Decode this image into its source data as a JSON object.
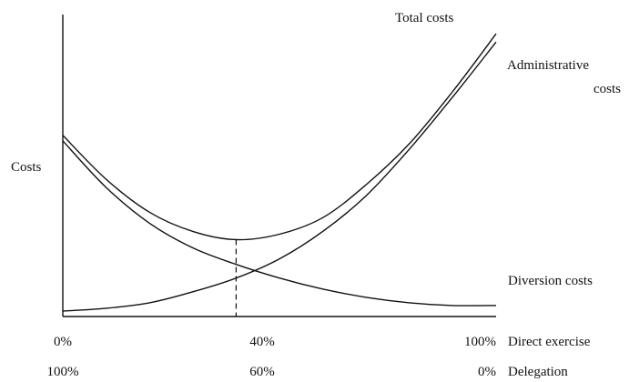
{
  "chart_data": {
    "type": "line",
    "ylabel": "Costs",
    "x_scales": [
      {
        "name": "Direct exercise",
        "ticks": [
          "0%",
          "40%",
          "100%"
        ]
      },
      {
        "name": "Delegation",
        "ticks": [
          "100%",
          "60%",
          "0%"
        ]
      }
    ],
    "x": [
      0,
      10,
      20,
      30,
      40,
      50,
      60,
      70,
      80,
      90,
      100
    ],
    "series": [
      {
        "name": "Total costs",
        "values": [
          66,
          50,
          38,
          31,
          28,
          30,
          36,
          48,
          63,
          82,
          103
        ]
      },
      {
        "name": "Administrative costs",
        "values": [
          2,
          3,
          5,
          9,
          14,
          21,
          31,
          44,
          61,
          80,
          100
        ]
      },
      {
        "name": "Diversion costs",
        "values": [
          64,
          47,
          34,
          25,
          19,
          14,
          10,
          7,
          5,
          4,
          4
        ]
      }
    ],
    "annotations": [
      {
        "type": "vertical-dashed-line",
        "x": 40,
        "series": "Total costs"
      }
    ],
    "xlim": [
      0,
      100
    ],
    "ylim": [
      0,
      110
    ],
    "grid": false
  }
}
